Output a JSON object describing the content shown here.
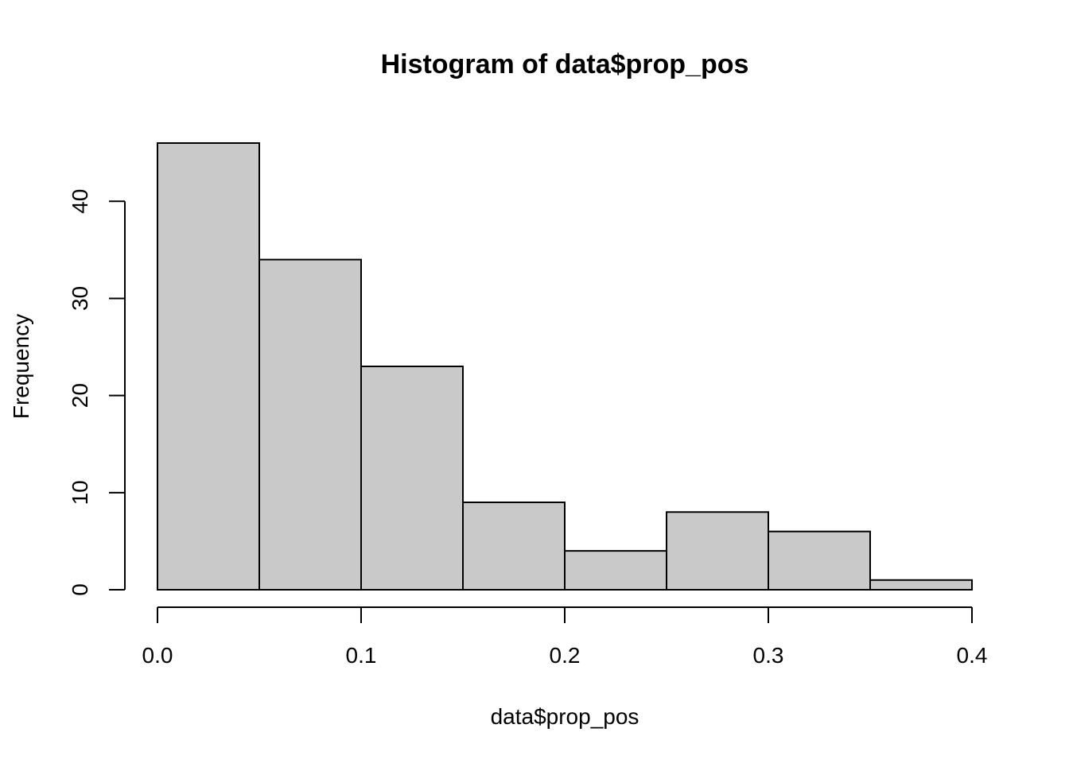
{
  "chart_data": {
    "type": "bar",
    "subtype": "histogram",
    "title": "Histogram of data$prop_pos",
    "xlabel": "data$prop_pos",
    "ylabel": "Frequency",
    "bin_edges": [
      0.0,
      0.05,
      0.1,
      0.15,
      0.2,
      0.25,
      0.3,
      0.35,
      0.4
    ],
    "values": [
      46,
      34,
      23,
      9,
      4,
      8,
      6,
      1
    ],
    "xlim": [
      0.0,
      0.4
    ],
    "ylim": [
      0,
      46
    ],
    "x_ticks": [
      0.0,
      0.1,
      0.2,
      0.3,
      0.4
    ],
    "x_tick_labels": [
      "0.0",
      "0.1",
      "0.2",
      "0.3",
      "0.4"
    ],
    "y_ticks": [
      0,
      10,
      20,
      30,
      40
    ],
    "y_tick_labels": [
      "0",
      "10",
      "20",
      "30",
      "40"
    ],
    "bar_color": "#c9c9c9",
    "edge_color": "#000000",
    "grid": false,
    "legend": "none"
  }
}
